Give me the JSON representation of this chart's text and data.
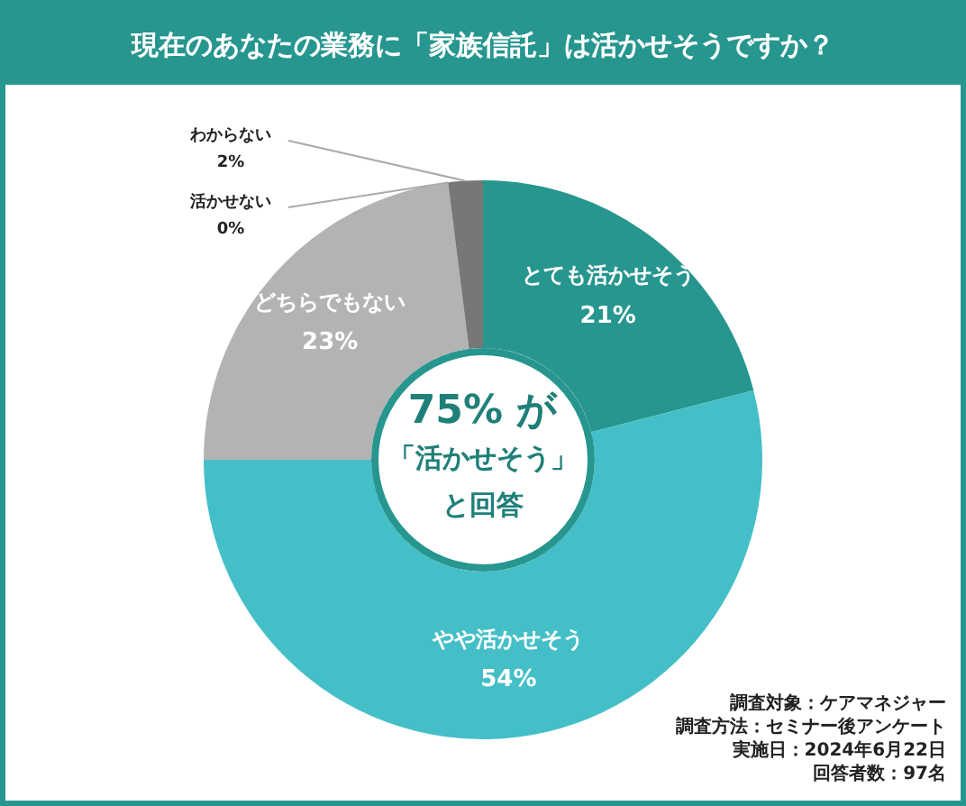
{
  "chart_data": {
    "type": "donut",
    "title": "現在のあなたの業務に「家族信託」は活かせそうですか？",
    "categories": [
      "とても活かせそう",
      "やや活かせそう",
      "どちらでもない",
      "活かせない",
      "わからない"
    ],
    "values": [
      21,
      54,
      23,
      0,
      2
    ],
    "colors": [
      "#26968f",
      "#45bfc7",
      "#b3b3b3",
      "#9a9a9a",
      "#777777"
    ],
    "value_labels": [
      "21%",
      "54%",
      "23%",
      "0%",
      "2%"
    ],
    "legend": false,
    "annotations": [
      "75% が",
      "「活かせそう」",
      "と回答",
      "調査対象：ケアマネジャー",
      "調査方法：セミナー後アンケート",
      "実施日：2024年6月22日",
      "回答者数：97名"
    ]
  }
}
